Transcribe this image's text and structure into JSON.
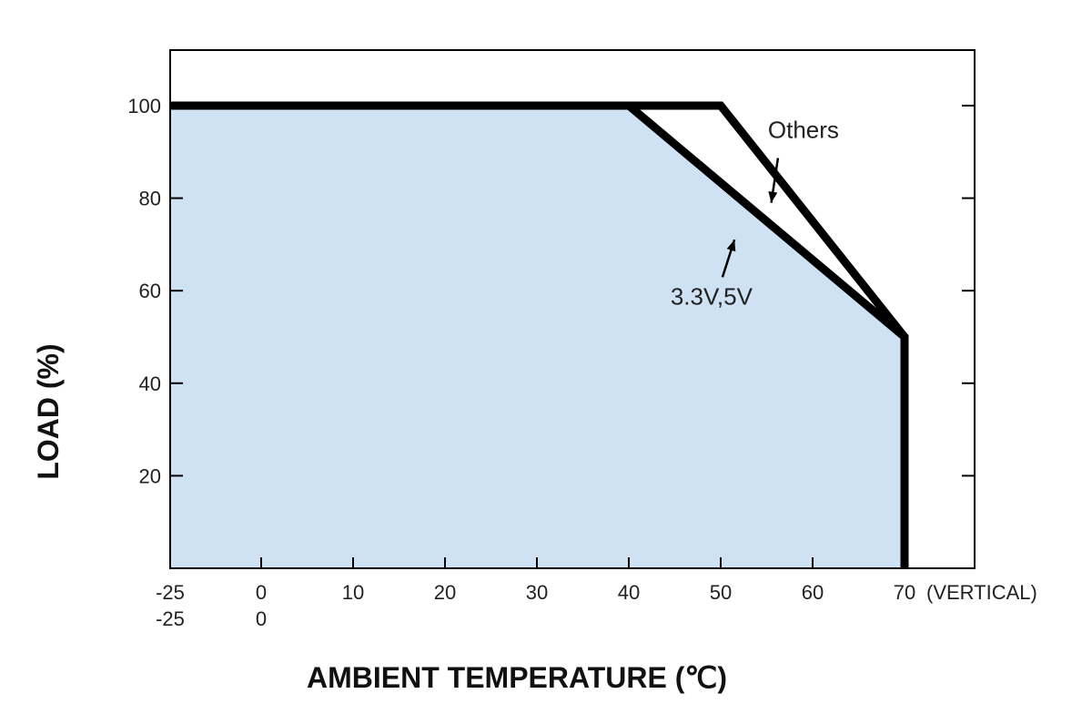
{
  "chart_data": {
    "type": "line",
    "xlabel": "AMBIENT TEMPERATURE (℃)",
    "ylabel": "LOAD (%)",
    "xlim": [
      -25,
      80
    ],
    "ylim": [
      0,
      112
    ],
    "x_ticks": [
      -25,
      0,
      10,
      20,
      30,
      40,
      50,
      60,
      70
    ],
    "x_tick_labels": [
      "-25",
      "0",
      "10",
      "20",
      "30",
      "40",
      "50",
      "60",
      "70"
    ],
    "x_tick_labels_second_row": [
      "-25",
      "0"
    ],
    "x_tick_suffix": "(VERTICAL)",
    "y_ticks": [
      20,
      40,
      60,
      80,
      100
    ],
    "y_tick_labels": [
      "20",
      "40",
      "60",
      "80",
      "100"
    ],
    "series": [
      {
        "name": "Others",
        "x": [
          -25,
          50,
          70,
          70
        ],
        "y": [
          100,
          100,
          50,
          0
        ]
      },
      {
        "name": "3.3V,5V",
        "x": [
          -25,
          40,
          70,
          70
        ],
        "y": [
          100,
          100,
          50,
          0
        ]
      }
    ],
    "annotations": [
      {
        "text": "Others",
        "x": 59,
        "y": 93,
        "arrow_to": [
          55.5,
          79
        ]
      },
      {
        "text": "3.3V,5V",
        "x": 49,
        "y": 57,
        "arrow_to": [
          51.5,
          71
        ]
      }
    ],
    "fill_color": "#cfe2f3",
    "line_color": "#000000",
    "grid": false
  }
}
